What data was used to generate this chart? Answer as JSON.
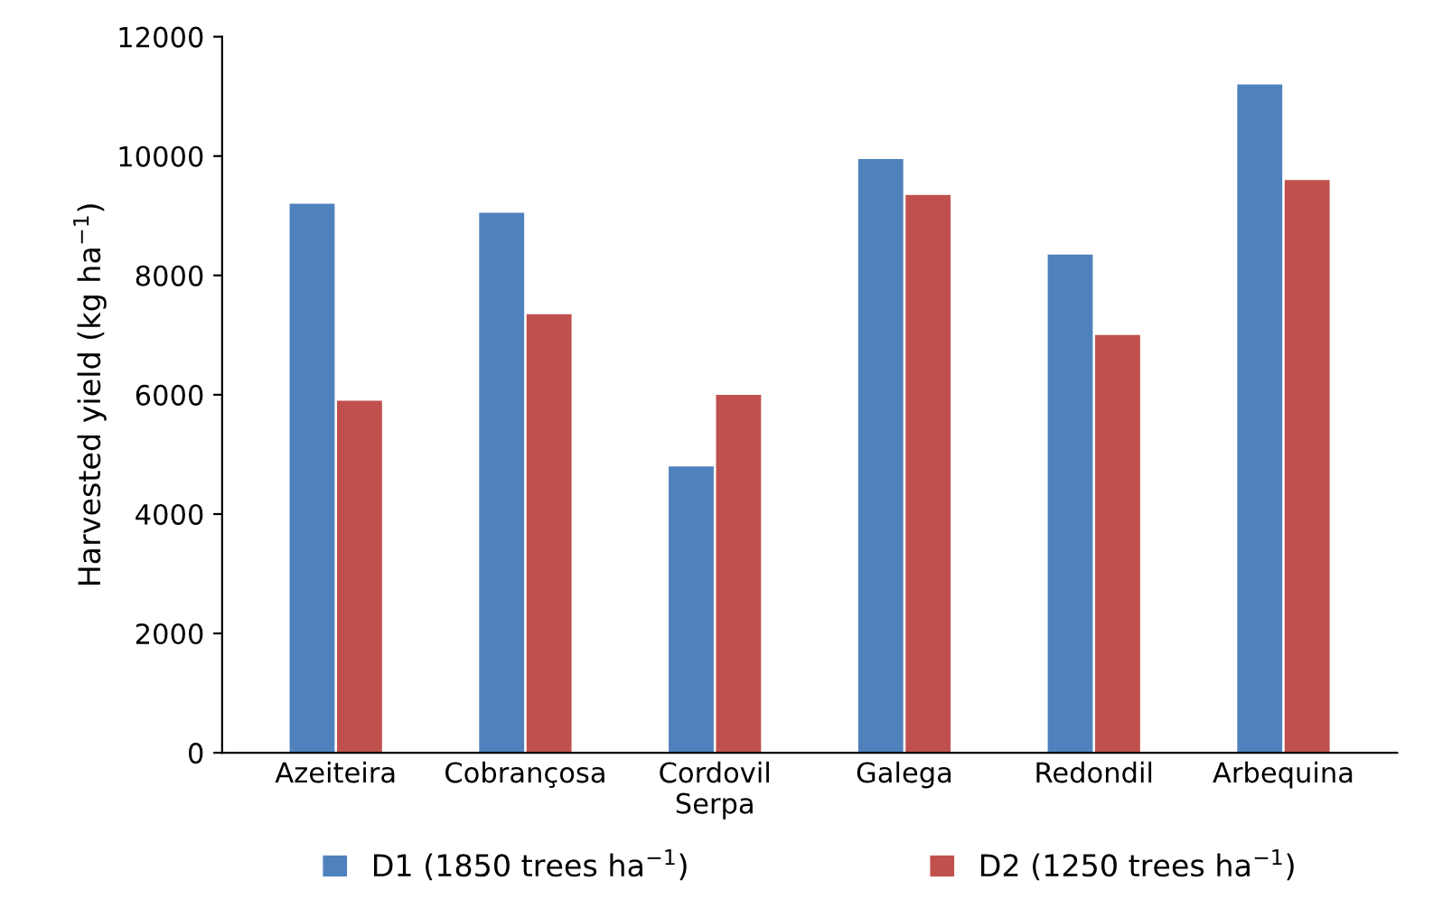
{
  "chart_data": {
    "type": "bar",
    "ylabel": "Harvested yield (kg ha$^{−1}$)",
    "categories": [
      "Azeiteira",
      "Cobrançosa",
      "Cordovil\nSerpa",
      "Galega",
      "Redondil",
      "Arbequina"
    ],
    "series": [
      {
        "name": "D1 (1850 trees ha$^{−1}$)",
        "color": "#4f81bd",
        "values": [
          9200,
          9050,
          4800,
          9950,
          8350,
          11200
        ]
      },
      {
        "name": "D2 (1250 trees ha$^{−1}$)",
        "color": "#c0504d",
        "values": [
          5900,
          7350,
          6000,
          9350,
          7000,
          9600
        ]
      }
    ],
    "ylim": [
      0,
      12000
    ],
    "yticks": [
      0,
      2000,
      4000,
      6000,
      8000,
      10000,
      12000
    ],
    "grid": false,
    "legend": "bottom"
  }
}
